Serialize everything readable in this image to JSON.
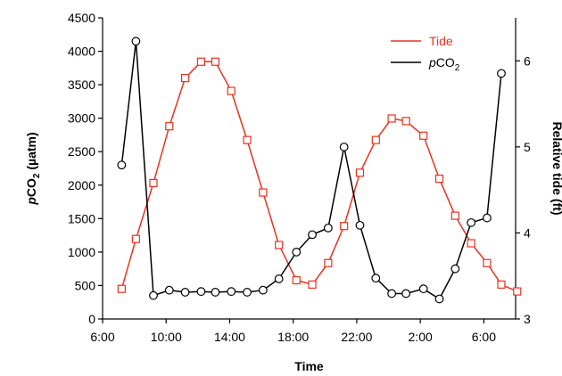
{
  "chart_data": {
    "type": "line",
    "xlabel": "Time",
    "x_ticks": [
      "6:00",
      "10:00",
      "14:00",
      "18:00",
      "22:00",
      "2:00",
      "6:00"
    ],
    "x_range_hours": [
      6,
      32
    ],
    "y_left": {
      "label_prefix": "p",
      "label_main": "CO",
      "label_sub": "2",
      "label_unit": " (µatm)",
      "range": [
        0,
        4500
      ],
      "ticks": [
        "0",
        "500",
        "1000",
        "1500",
        "2000",
        "2500",
        "3000",
        "3500",
        "4000",
        "4500"
      ]
    },
    "y_right": {
      "label": "Relative tide (ft)",
      "range": [
        3,
        6.5
      ],
      "ticks": [
        "3",
        "4",
        "5",
        "6"
      ]
    },
    "legend_position": "top-right",
    "series": [
      {
        "name": "Tide",
        "axis": "right",
        "color": "#e8321e",
        "marker": "square",
        "points": [
          [
            7.2,
            3.35
          ],
          [
            8.1,
            3.93
          ],
          [
            9.2,
            4.58
          ],
          [
            10.2,
            5.24
          ],
          [
            11.2,
            5.8
          ],
          [
            12.2,
            5.99
          ],
          [
            13.1,
            5.99
          ],
          [
            14.1,
            5.65
          ],
          [
            15.1,
            5.08
          ],
          [
            16.1,
            4.47
          ],
          [
            17.1,
            3.86
          ],
          [
            18.2,
            3.45
          ],
          [
            19.2,
            3.4
          ],
          [
            20.2,
            3.65
          ],
          [
            21.2,
            4.08
          ],
          [
            22.2,
            4.7
          ],
          [
            23.2,
            5.08
          ],
          [
            24.2,
            5.33
          ],
          [
            25.1,
            5.3
          ],
          [
            26.2,
            5.13
          ],
          [
            27.2,
            4.63
          ],
          [
            28.2,
            4.2
          ],
          [
            29.2,
            3.88
          ],
          [
            30.2,
            3.65
          ],
          [
            31.1,
            3.4
          ],
          [
            32.1,
            3.32
          ]
        ]
      },
      {
        "name_prefix": "p",
        "name_main": "CO",
        "name_sub": "2",
        "axis": "left",
        "color": "#000000",
        "marker": "circle",
        "points": [
          [
            7.2,
            2300
          ],
          [
            8.1,
            4150
          ],
          [
            9.2,
            350
          ],
          [
            10.2,
            430
          ],
          [
            11.2,
            400
          ],
          [
            12.2,
            410
          ],
          [
            13.1,
            400
          ],
          [
            14.1,
            410
          ],
          [
            15.1,
            400
          ],
          [
            16.1,
            430
          ],
          [
            17.1,
            600
          ],
          [
            18.2,
            1000
          ],
          [
            19.2,
            1260
          ],
          [
            20.2,
            1360
          ],
          [
            21.2,
            2570
          ],
          [
            22.2,
            1400
          ],
          [
            23.2,
            610
          ],
          [
            24.2,
            380
          ],
          [
            25.1,
            380
          ],
          [
            26.2,
            450
          ],
          [
            27.2,
            300
          ],
          [
            28.2,
            750
          ],
          [
            29.2,
            1440
          ],
          [
            30.2,
            1510
          ],
          [
            31.1,
            3670
          ]
        ]
      }
    ]
  }
}
